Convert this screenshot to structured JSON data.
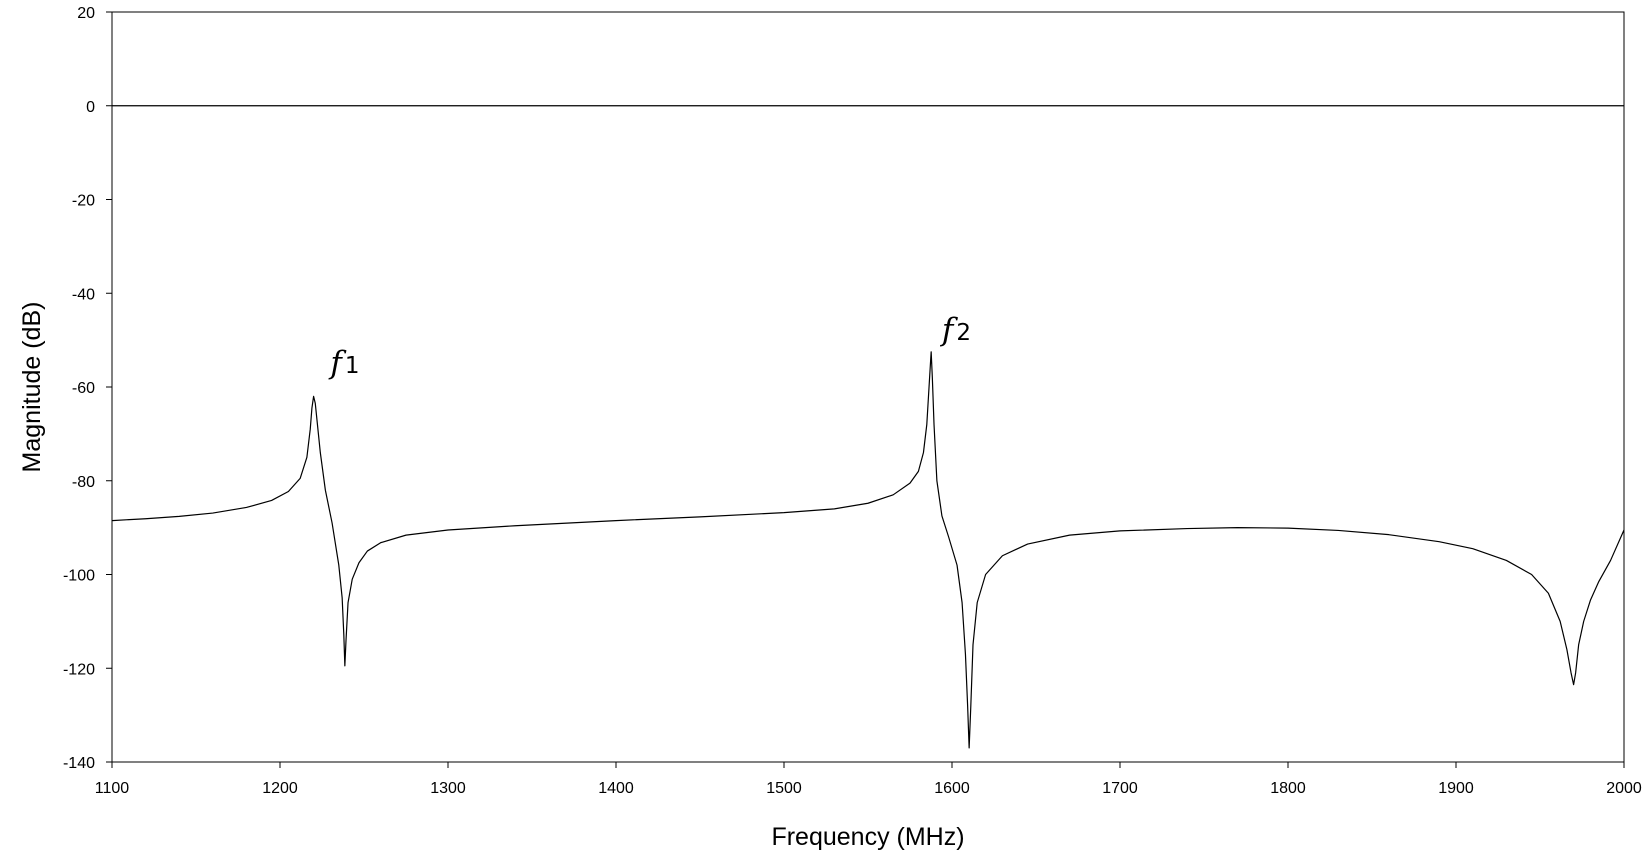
{
  "chart_data": {
    "type": "line",
    "title": "",
    "xlabel": "Frequency (MHz)",
    "ylabel": "Magnitude (dB)",
    "xlim": [
      1100,
      2000
    ],
    "ylim": [
      -140,
      20
    ],
    "xticks": [
      1100,
      1200,
      1300,
      1400,
      1500,
      1600,
      1700,
      1800,
      1900,
      2000
    ],
    "yticks": [
      20,
      0,
      -20,
      -40,
      -60,
      -80,
      -100,
      -120,
      -140
    ],
    "grid": false,
    "legend": "none",
    "line_color": "#000000",
    "reference_lines": [
      {
        "axis": "y",
        "value": 0
      }
    ],
    "annotations": [
      {
        "italic": "f",
        "sub": "1",
        "x": 1230,
        "y": -57
      },
      {
        "italic": "f",
        "sub": "2",
        "x": 1594,
        "y": -50
      }
    ],
    "series": [
      {
        "values": [
          [
            1100,
            -88.5
          ],
          [
            1120,
            -88.1
          ],
          [
            1140,
            -87.6
          ],
          [
            1160,
            -86.9
          ],
          [
            1180,
            -85.7
          ],
          [
            1195,
            -84.2
          ],
          [
            1205,
            -82.3
          ],
          [
            1212,
            -79.5
          ],
          [
            1216,
            -75.0
          ],
          [
            1218,
            -69.0
          ],
          [
            1219,
            -64.5
          ],
          [
            1220,
            -62.0
          ],
          [
            1221,
            -63.5
          ],
          [
            1222,
            -67.0
          ],
          [
            1224,
            -74.0
          ],
          [
            1227,
            -82.0
          ],
          [
            1231,
            -89.0
          ],
          [
            1235,
            -98.0
          ],
          [
            1237,
            -105.0
          ],
          [
            1238,
            -113.0
          ],
          [
            1238.6,
            -119.5
          ],
          [
            1239.3,
            -114.0
          ],
          [
            1240.5,
            -106.0
          ],
          [
            1243,
            -101.0
          ],
          [
            1247,
            -97.5
          ],
          [
            1252,
            -95.0
          ],
          [
            1260,
            -93.2
          ],
          [
            1275,
            -91.6
          ],
          [
            1300,
            -90.5
          ],
          [
            1340,
            -89.6
          ],
          [
            1400,
            -88.5
          ],
          [
            1450,
            -87.7
          ],
          [
            1500,
            -86.8
          ],
          [
            1530,
            -86.0
          ],
          [
            1550,
            -84.8
          ],
          [
            1565,
            -83.0
          ],
          [
            1575,
            -80.5
          ],
          [
            1580,
            -78.0
          ],
          [
            1583,
            -74.0
          ],
          [
            1585,
            -68.0
          ],
          [
            1586,
            -62.0
          ],
          [
            1587,
            -56.0
          ],
          [
            1587.6,
            -52.5
          ],
          [
            1588.3,
            -58.0
          ],
          [
            1589.3,
            -68.0
          ],
          [
            1591,
            -80.0
          ],
          [
            1594,
            -87.5
          ],
          [
            1598,
            -92.0
          ],
          [
            1603,
            -98.0
          ],
          [
            1606,
            -106.0
          ],
          [
            1608,
            -117.0
          ],
          [
            1609.3,
            -128.0
          ],
          [
            1610.2,
            -137.0
          ],
          [
            1611.2,
            -128.0
          ],
          [
            1612.5,
            -115.0
          ],
          [
            1615,
            -106.0
          ],
          [
            1620,
            -100.0
          ],
          [
            1630,
            -96.0
          ],
          [
            1645,
            -93.5
          ],
          [
            1670,
            -91.6
          ],
          [
            1700,
            -90.7
          ],
          [
            1740,
            -90.2
          ],
          [
            1770,
            -90.0
          ],
          [
            1800,
            -90.1
          ],
          [
            1830,
            -90.6
          ],
          [
            1860,
            -91.5
          ],
          [
            1890,
            -93.0
          ],
          [
            1910,
            -94.5
          ],
          [
            1930,
            -97.0
          ],
          [
            1945,
            -100.0
          ],
          [
            1955,
            -104.0
          ],
          [
            1962,
            -110.0
          ],
          [
            1966,
            -116.0
          ],
          [
            1968.5,
            -121.0
          ],
          [
            1970,
            -123.5
          ],
          [
            1971.2,
            -121.0
          ],
          [
            1973,
            -115.0
          ],
          [
            1976,
            -110.0
          ],
          [
            1980,
            -105.5
          ],
          [
            1985,
            -101.5
          ],
          [
            1992,
            -97.0
          ],
          [
            2000,
            -90.5
          ]
        ]
      }
    ]
  }
}
